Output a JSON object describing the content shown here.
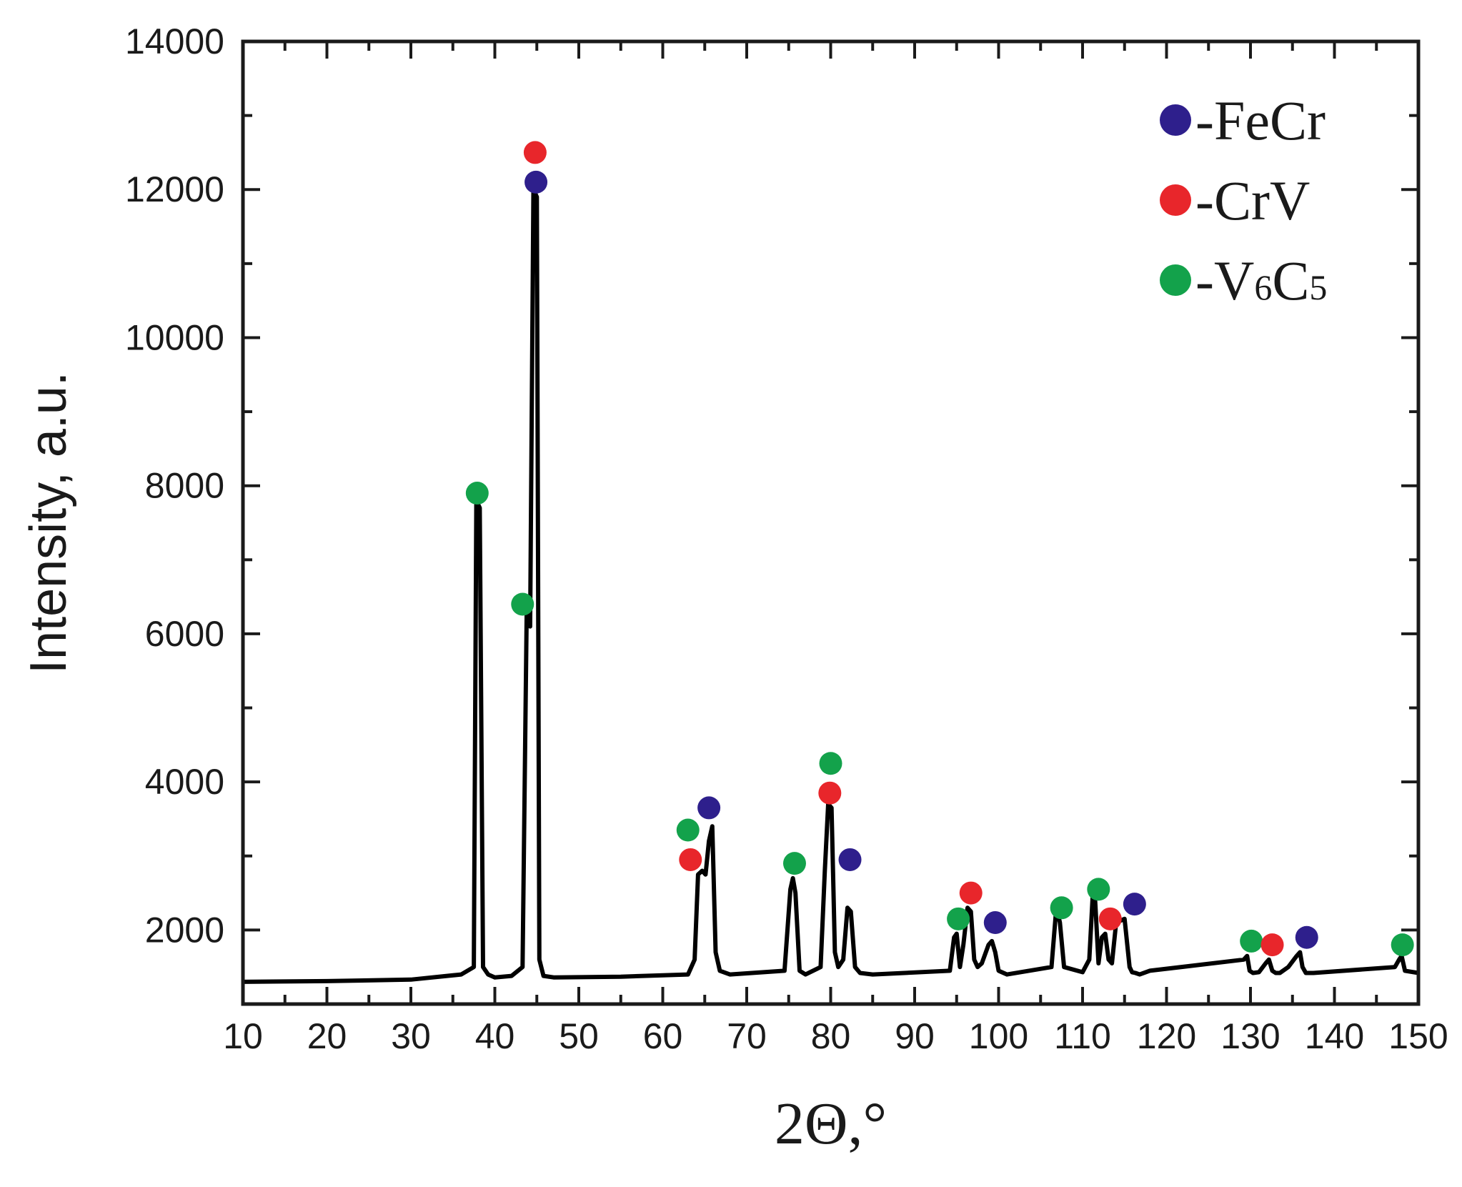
{
  "chart_data": {
    "type": "line",
    "title": "",
    "xlabel": "2Θ,°",
    "ylabel": "Intensity, a.u.",
    "xlim": [
      10,
      150
    ],
    "ylim": [
      1000,
      14000
    ],
    "x_ticks": [
      10,
      20,
      30,
      40,
      50,
      60,
      70,
      80,
      90,
      100,
      110,
      120,
      130,
      140,
      150
    ],
    "y_ticks": [
      2000,
      4000,
      6000,
      8000,
      10000,
      12000,
      14000
    ],
    "grid": false,
    "legend_position": "top-right",
    "colors": {
      "FeCr": "#2e1f8c",
      "CrV": "#e8262b",
      "V6C5": "#13a24b",
      "line": "#000000"
    },
    "legend": [
      {
        "key": "FeCr",
        "prefix": "-",
        "text": "FeCr",
        "sub1": "",
        "text2": "",
        "sub2": ""
      },
      {
        "key": "CrV",
        "prefix": "-",
        "text": "CrV",
        "sub1": "",
        "text2": "",
        "sub2": ""
      },
      {
        "key": "V6C5",
        "prefix": "-",
        "text": "V",
        "sub1": "6",
        "text2": "C",
        "sub2": "5"
      }
    ],
    "series": [
      {
        "x": [
          10,
          20,
          30,
          36,
          37.5,
          37.8,
          38.2,
          38.6,
          39.2,
          40,
          42,
          43.3,
          43.8,
          44.2,
          44.6,
          45,
          45.3,
          45.8,
          47,
          55,
          63,
          63.8,
          64.2,
          64.7,
          65.1,
          65.5,
          65.9,
          66.3,
          66.8,
          68,
          74.5,
          75.2,
          75.5,
          75.8,
          76.3,
          77,
          78.8,
          79.3,
          79.7,
          80.1,
          80.5,
          80.9,
          81.5,
          82,
          82.4,
          82.9,
          83.5,
          85,
          94.2,
          94.7,
          95,
          95.4,
          95.8,
          96.3,
          96.7,
          97.1,
          97.5,
          98,
          98.8,
          99.2,
          99.6,
          100,
          101,
          106.3,
          106.8,
          107,
          107.3,
          107.8,
          110,
          110.8,
          111.2,
          111.5,
          111.9,
          112.3,
          112.7,
          113.1,
          113.5,
          114,
          115,
          115.6,
          115.9,
          116.3,
          116.8,
          118,
          129.2,
          129.6,
          129.9,
          130.3,
          131,
          131.8,
          132.2,
          132.6,
          133,
          133.5,
          134.5,
          135.5,
          135.9,
          136.2,
          136.6,
          137.5,
          147.2,
          147.7,
          148,
          148.4,
          150
        ],
        "y": [
          1300,
          1310,
          1330,
          1400,
          1500,
          7800,
          7700,
          1500,
          1400,
          1360,
          1380,
          1500,
          6300,
          6100,
          12000,
          11900,
          1600,
          1380,
          1360,
          1370,
          1400,
          1600,
          2750,
          2800,
          2750,
          3200,
          3400,
          1700,
          1450,
          1400,
          1450,
          2550,
          2700,
          2500,
          1450,
          1400,
          1500,
          2800,
          3700,
          3650,
          1700,
          1500,
          1600,
          2300,
          2250,
          1500,
          1420,
          1400,
          1450,
          1900,
          1950,
          1500,
          1800,
          2300,
          2250,
          1600,
          1500,
          1550,
          1800,
          1850,
          1700,
          1450,
          1400,
          1500,
          2200,
          2250,
          2100,
          1500,
          1430,
          1600,
          2450,
          2400,
          1550,
          1900,
          1950,
          1600,
          1550,
          2100,
          2150,
          1500,
          1430,
          1420,
          1400,
          1450,
          1600,
          1650,
          1450,
          1420,
          1430,
          1550,
          1600,
          1450,
          1420,
          1420,
          1500,
          1650,
          1700,
          1500,
          1420,
          1420,
          1500,
          1600,
          1650,
          1450,
          1420
        ]
      }
    ],
    "markers": [
      {
        "phase": "V6C5",
        "x": 37.9,
        "y": 7900
      },
      {
        "phase": "V6C5",
        "x": 43.3,
        "y": 6400
      },
      {
        "phase": "CrV",
        "x": 44.8,
        "y": 12500
      },
      {
        "phase": "FeCr",
        "x": 44.9,
        "y": 12100
      },
      {
        "phase": "V6C5",
        "x": 63,
        "y": 3350
      },
      {
        "phase": "CrV",
        "x": 63.3,
        "y": 2950
      },
      {
        "phase": "FeCr",
        "x": 65.5,
        "y": 3650
      },
      {
        "phase": "V6C5",
        "x": 75.7,
        "y": 2900
      },
      {
        "phase": "V6C5",
        "x": 80,
        "y": 4250
      },
      {
        "phase": "CrV",
        "x": 79.9,
        "y": 3850
      },
      {
        "phase": "FeCr",
        "x": 82.3,
        "y": 2950
      },
      {
        "phase": "V6C5",
        "x": 95.2,
        "y": 2150
      },
      {
        "phase": "CrV",
        "x": 96.7,
        "y": 2500
      },
      {
        "phase": "FeCr",
        "x": 99.6,
        "y": 2100
      },
      {
        "phase": "V6C5",
        "x": 107.5,
        "y": 2300
      },
      {
        "phase": "V6C5",
        "x": 111.9,
        "y": 2550
      },
      {
        "phase": "CrV",
        "x": 113.3,
        "y": 2150
      },
      {
        "phase": "FeCr",
        "x": 116.2,
        "y": 2350
      },
      {
        "phase": "V6C5",
        "x": 130.1,
        "y": 1850
      },
      {
        "phase": "CrV",
        "x": 132.6,
        "y": 1800
      },
      {
        "phase": "FeCr",
        "x": 136.7,
        "y": 1900
      },
      {
        "phase": "V6C5",
        "x": 148.1,
        "y": 1800
      }
    ]
  }
}
